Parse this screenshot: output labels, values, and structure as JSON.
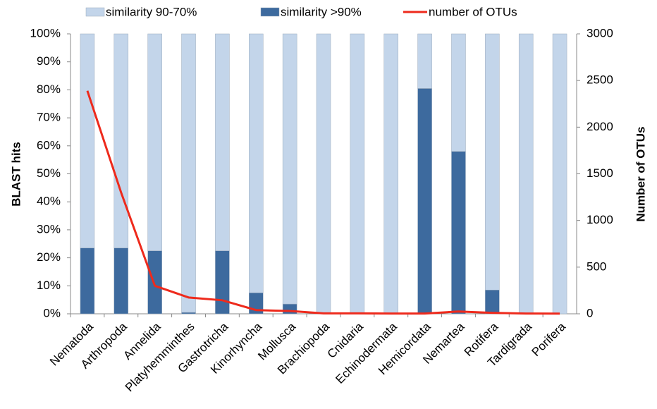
{
  "chart_data": {
    "type": "bar",
    "categories": [
      "Nematoda",
      "Arthropoda",
      "Annelida",
      "Platyhemminthes",
      "Gastrotricha",
      "Kinorhyncha",
      "Mollusca",
      "Brachiopoda",
      "Cnidaria",
      "Echinodermata",
      "Hemicordata",
      "Nemartea",
      "Rotifera",
      "Tardigrada",
      "Porifera"
    ],
    "series": [
      {
        "name": "similarity 90-70%",
        "color": "#c3d5ea",
        "type": "bar",
        "values": [
          76.5,
          76.5,
          77.5,
          99.5,
          77.5,
          92.5,
          96.5,
          100,
          100,
          100,
          19.5,
          42,
          91.5,
          100,
          100
        ]
      },
      {
        "name": "similarity >90%",
        "color": "#3d6a9e",
        "type": "bar",
        "values": [
          23.5,
          23.5,
          22.5,
          0.5,
          22.5,
          7.5,
          3.5,
          0,
          0,
          0,
          80.5,
          58,
          8.5,
          0,
          0
        ]
      },
      {
        "name": "number of OTUs",
        "color": "#ee2a1c",
        "type": "line",
        "axis": "y2",
        "values": [
          2390,
          1300,
          300,
          175,
          145,
          40,
          30,
          5,
          5,
          3,
          3,
          25,
          10,
          3,
          2
        ]
      }
    ],
    "ylabel": "BLAST hits",
    "y2label": "Number of OTUs",
    "ylim": [
      0,
      100
    ],
    "yticks": [
      {
        "value": 0,
        "label": "0%"
      },
      {
        "value": 10,
        "label": "10%"
      },
      {
        "value": 20,
        "label": "20%"
      },
      {
        "value": 30,
        "label": "30%"
      },
      {
        "value": 40,
        "label": "40%"
      },
      {
        "value": 50,
        "label": "50%"
      },
      {
        "value": 60,
        "label": "60%"
      },
      {
        "value": 70,
        "label": "70%"
      },
      {
        "value": 80,
        "label": "80%"
      },
      {
        "value": 90,
        "label": "90%"
      },
      {
        "value": 100,
        "label": "100%"
      }
    ],
    "y2lim": [
      0,
      3000
    ],
    "y2ticks": [
      0,
      500,
      1000,
      1500,
      2000,
      2500,
      3000
    ],
    "legend": "top",
    "grid": false
  }
}
